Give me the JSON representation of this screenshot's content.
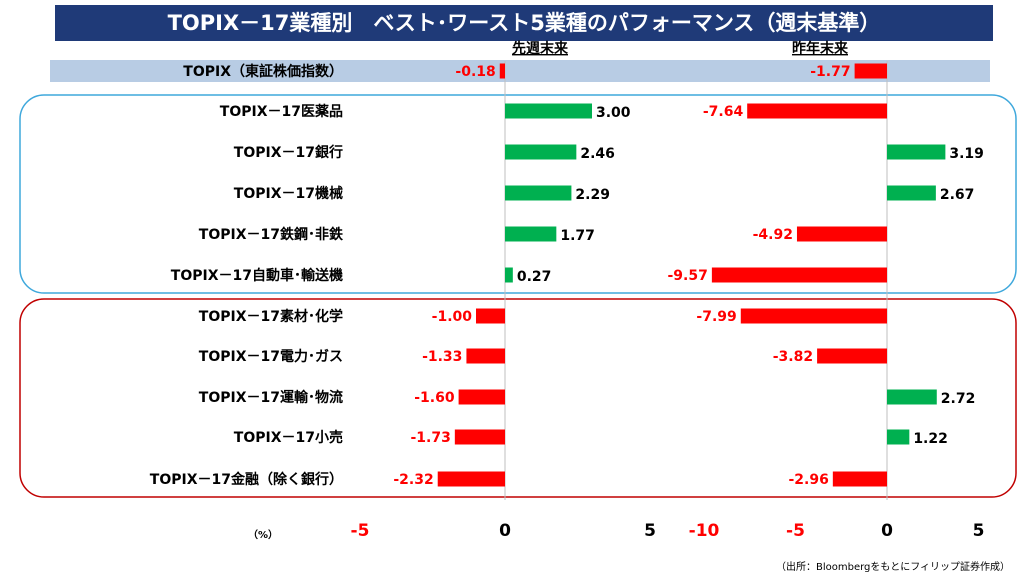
{
  "title": "TOPIX－17業種別　ベスト･ワースト5業種のパフォーマンス（週末基準）",
  "source_note": "（出所：Bloombergをもとにフィリップ証券作成）",
  "unit_label": "（%）",
  "colors": {
    "positive": "#00b050",
    "negative": "#ff0000",
    "title_bg": "#1f3a78",
    "topix_band": "#b8cce4",
    "best_border": "#3fa8dc",
    "worst_border": "#c00000"
  },
  "chart_data": [
    {
      "type": "bar",
      "orientation": "horizontal",
      "title": "先週末来",
      "categories": [
        "TOPIX（東証株価指数）",
        "TOPIX－17医薬品",
        "TOPIX－17銀行",
        "TOPIX－17機械",
        "TOPIX－17鉄鋼･非鉄",
        "TOPIX－17自動車･輸送機",
        "TOPIX－17素材･化学",
        "TOPIX－17電力･ガス",
        "TOPIX－17運輸･物流",
        "TOPIX－17小売",
        "TOPIX－17金融（除く銀行）"
      ],
      "values": [
        -0.18,
        3.0,
        2.46,
        2.29,
        1.77,
        0.27,
        -1.0,
        -1.33,
        -1.6,
        -1.73,
        -2.32
      ],
      "labels": [
        "-0.18",
        "3.00",
        "2.46",
        "2.29",
        "1.77",
        "0.27",
        "-1.00",
        "-1.33",
        "-1.60",
        "-1.73",
        "-2.32"
      ],
      "xlim": [
        -5,
        5
      ],
      "ticks": [
        "-5",
        "0",
        "5"
      ]
    },
    {
      "type": "bar",
      "orientation": "horizontal",
      "title": "昨年末来",
      "categories": [
        "TOPIX（東証株価指数）",
        "TOPIX－17医薬品",
        "TOPIX－17銀行",
        "TOPIX－17機械",
        "TOPIX－17鉄鋼･非鉄",
        "TOPIX－17自動車･輸送機",
        "TOPIX－17素材･化学",
        "TOPIX－17電力･ガス",
        "TOPIX－17運輸･物流",
        "TOPIX－17小売",
        "TOPIX－17金融（除く銀行）"
      ],
      "values": [
        -1.77,
        -7.64,
        3.19,
        2.67,
        -4.92,
        -9.57,
        -7.99,
        -3.82,
        2.72,
        1.22,
        -2.96
      ],
      "labels": [
        "-1.77",
        "-7.64",
        "3.19",
        "2.67",
        "-4.92",
        "-9.57",
        "-7.99",
        "-3.82",
        "2.72",
        "1.22",
        "-2.96"
      ],
      "xlim": [
        -10,
        5
      ],
      "ticks": [
        "-10",
        "-5",
        "0",
        "5"
      ]
    }
  ]
}
